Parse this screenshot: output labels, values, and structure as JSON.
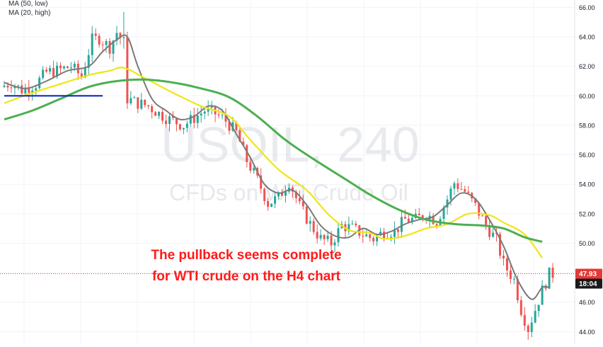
{
  "chart_data": {
    "type": "line",
    "watermark": {
      "line1": "USOIL, 240",
      "line2": "CFDs on WTI Crude Oil"
    },
    "y_axis": {
      "ticks": [
        44,
        46,
        48,
        50,
        52,
        54,
        56,
        58,
        60,
        62,
        64,
        66
      ],
      "tick_labels": [
        "44.00",
        "46.00",
        "48.00",
        "50.00",
        "52.00",
        "54.00",
        "56.00",
        "58.00",
        "60.00",
        "62.00",
        "64.00",
        "66.00"
      ],
      "ylim": [
        43.2,
        66.5
      ]
    },
    "x_range": [
      0,
      157
    ],
    "legend": [
      {
        "label": "MA (50, low)",
        "color": "#4caf50"
      },
      {
        "label": "MA (20, high)",
        "color": "#f0e516"
      }
    ],
    "price_label": {
      "value": 47.93,
      "text": "47.93",
      "color": "#e53935"
    },
    "countdown_label": {
      "text": "18:04",
      "color": "#1a1a1a"
    },
    "annotation": {
      "lines": [
        "The pullback seems complete",
        "for WTI crude on the H4 chart"
      ],
      "color": "#ff1a1a"
    },
    "support_line": {
      "price": 60.0,
      "x_start": 0,
      "x_end": 28,
      "color": "#0d2db8"
    },
    "colors": {
      "up": "#26a69a",
      "down": "#ef5350",
      "ma_slow": "#4caf50",
      "ma_fast": "#f0e516",
      "ma_short": "#7a7a7a"
    },
    "price_anchors": [
      [
        0,
        60.6
      ],
      [
        3,
        60.9
      ],
      [
        6,
        60.4
      ],
      [
        10,
        60.8
      ],
      [
        13,
        61.6
      ],
      [
        16,
        61.7
      ],
      [
        20,
        62.0
      ],
      [
        23,
        61.3
      ],
      [
        26,
        63.8
      ],
      [
        28,
        63.9
      ],
      [
        31,
        63.3
      ],
      [
        33,
        64.3
      ],
      [
        35,
        63.6
      ],
      [
        36,
        59.8
      ],
      [
        39,
        59.5
      ],
      [
        42,
        59.3
      ],
      [
        45,
        58.8
      ],
      [
        48,
        58.4
      ],
      [
        52,
        58.0
      ],
      [
        55,
        58.5
      ],
      [
        58,
        59.0
      ],
      [
        61,
        58.8
      ],
      [
        64,
        58.3
      ],
      [
        67,
        57.5
      ],
      [
        70,
        55.6
      ],
      [
        73,
        54.3
      ],
      [
        76,
        52.7
      ],
      [
        79,
        53.1
      ],
      [
        82,
        54.2
      ],
      [
        85,
        52.5
      ],
      [
        88,
        51.3
      ],
      [
        91,
        50.3
      ],
      [
        94,
        50.0
      ],
      [
        97,
        51.2
      ],
      [
        100,
        51.0
      ],
      [
        103,
        50.6
      ],
      [
        106,
        50.3
      ],
      [
        109,
        50.8
      ],
      [
        112,
        50.8
      ],
      [
        115,
        51.6
      ],
      [
        118,
        51.6
      ],
      [
        121,
        52.0
      ],
      [
        124,
        51.5
      ],
      [
        127,
        53.0
      ],
      [
        129,
        54.1
      ],
      [
        132,
        53.5
      ],
      [
        135,
        52.5
      ],
      [
        138,
        51.2
      ],
      [
        141,
        50.2
      ],
      [
        143,
        48.6
      ],
      [
        146,
        47.5
      ],
      [
        148,
        45.5
      ],
      [
        150,
        44.2
      ],
      [
        152,
        45.5
      ],
      [
        154,
        46.8
      ],
      [
        156,
        47.9
      ]
    ],
    "ma_slow_anchors": [
      [
        0,
        58.4
      ],
      [
        8,
        59.0
      ],
      [
        16,
        59.8
      ],
      [
        24,
        60.6
      ],
      [
        32,
        61.0
      ],
      [
        40,
        61.1
      ],
      [
        48,
        60.9
      ],
      [
        56,
        60.5
      ],
      [
        64,
        59.9
      ],
      [
        72,
        58.6
      ],
      [
        80,
        57.0
      ],
      [
        88,
        55.7
      ],
      [
        96,
        54.5
      ],
      [
        104,
        53.3
      ],
      [
        112,
        52.3
      ],
      [
        120,
        51.6
      ],
      [
        128,
        51.3
      ],
      [
        136,
        51.2
      ],
      [
        142,
        51.0
      ],
      [
        148,
        50.4
      ],
      [
        153,
        50.1
      ]
    ],
    "ma_fast_anchors": [
      [
        0,
        59.5
      ],
      [
        8,
        60.2
      ],
      [
        16,
        60.8
      ],
      [
        24,
        61.4
      ],
      [
        30,
        61.7
      ],
      [
        34,
        61.9
      ],
      [
        40,
        61.2
      ],
      [
        48,
        60.2
      ],
      [
        56,
        59.3
      ],
      [
        64,
        58.6
      ],
      [
        70,
        57.0
      ],
      [
        78,
        55.0
      ],
      [
        86,
        53.6
      ],
      [
        92,
        52.0
      ],
      [
        98,
        50.9
      ],
      [
        104,
        50.7
      ],
      [
        108,
        50.3
      ],
      [
        114,
        50.5
      ],
      [
        120,
        51.0
      ],
      [
        126,
        51.3
      ],
      [
        132,
        52.0
      ],
      [
        138,
        51.9
      ],
      [
        142,
        51.4
      ],
      [
        148,
        50.6
      ],
      [
        153,
        49.0
      ]
    ],
    "ma_short_anchors": [
      [
        0,
        60.9
      ],
      [
        6,
        60.5
      ],
      [
        12,
        61.0
      ],
      [
        18,
        61.7
      ],
      [
        24,
        62.0
      ],
      [
        28,
        63.0
      ],
      [
        32,
        63.8
      ],
      [
        35,
        64.0
      ],
      [
        38,
        62.0
      ],
      [
        42,
        59.8
      ],
      [
        46,
        59.0
      ],
      [
        50,
        58.4
      ],
      [
        54,
        58.6
      ],
      [
        58,
        59.3
      ],
      [
        62,
        59.0
      ],
      [
        66,
        57.4
      ],
      [
        70,
        55.8
      ],
      [
        74,
        54.0
      ],
      [
        78,
        53.4
      ],
      [
        82,
        53.6
      ],
      [
        86,
        52.6
      ],
      [
        90,
        51.2
      ],
      [
        94,
        50.5
      ],
      [
        98,
        50.4
      ],
      [
        102,
        51.0
      ],
      [
        106,
        50.6
      ],
      [
        110,
        50.8
      ],
      [
        114,
        51.3
      ],
      [
        118,
        51.6
      ],
      [
        122,
        51.8
      ],
      [
        126,
        52.6
      ],
      [
        130,
        53.4
      ],
      [
        134,
        53.0
      ],
      [
        138,
        51.6
      ],
      [
        142,
        49.8
      ],
      [
        146,
        47.5
      ],
      [
        150,
        46.2
      ],
      [
        153,
        47.0
      ],
      [
        155,
        47.0
      ]
    ]
  }
}
